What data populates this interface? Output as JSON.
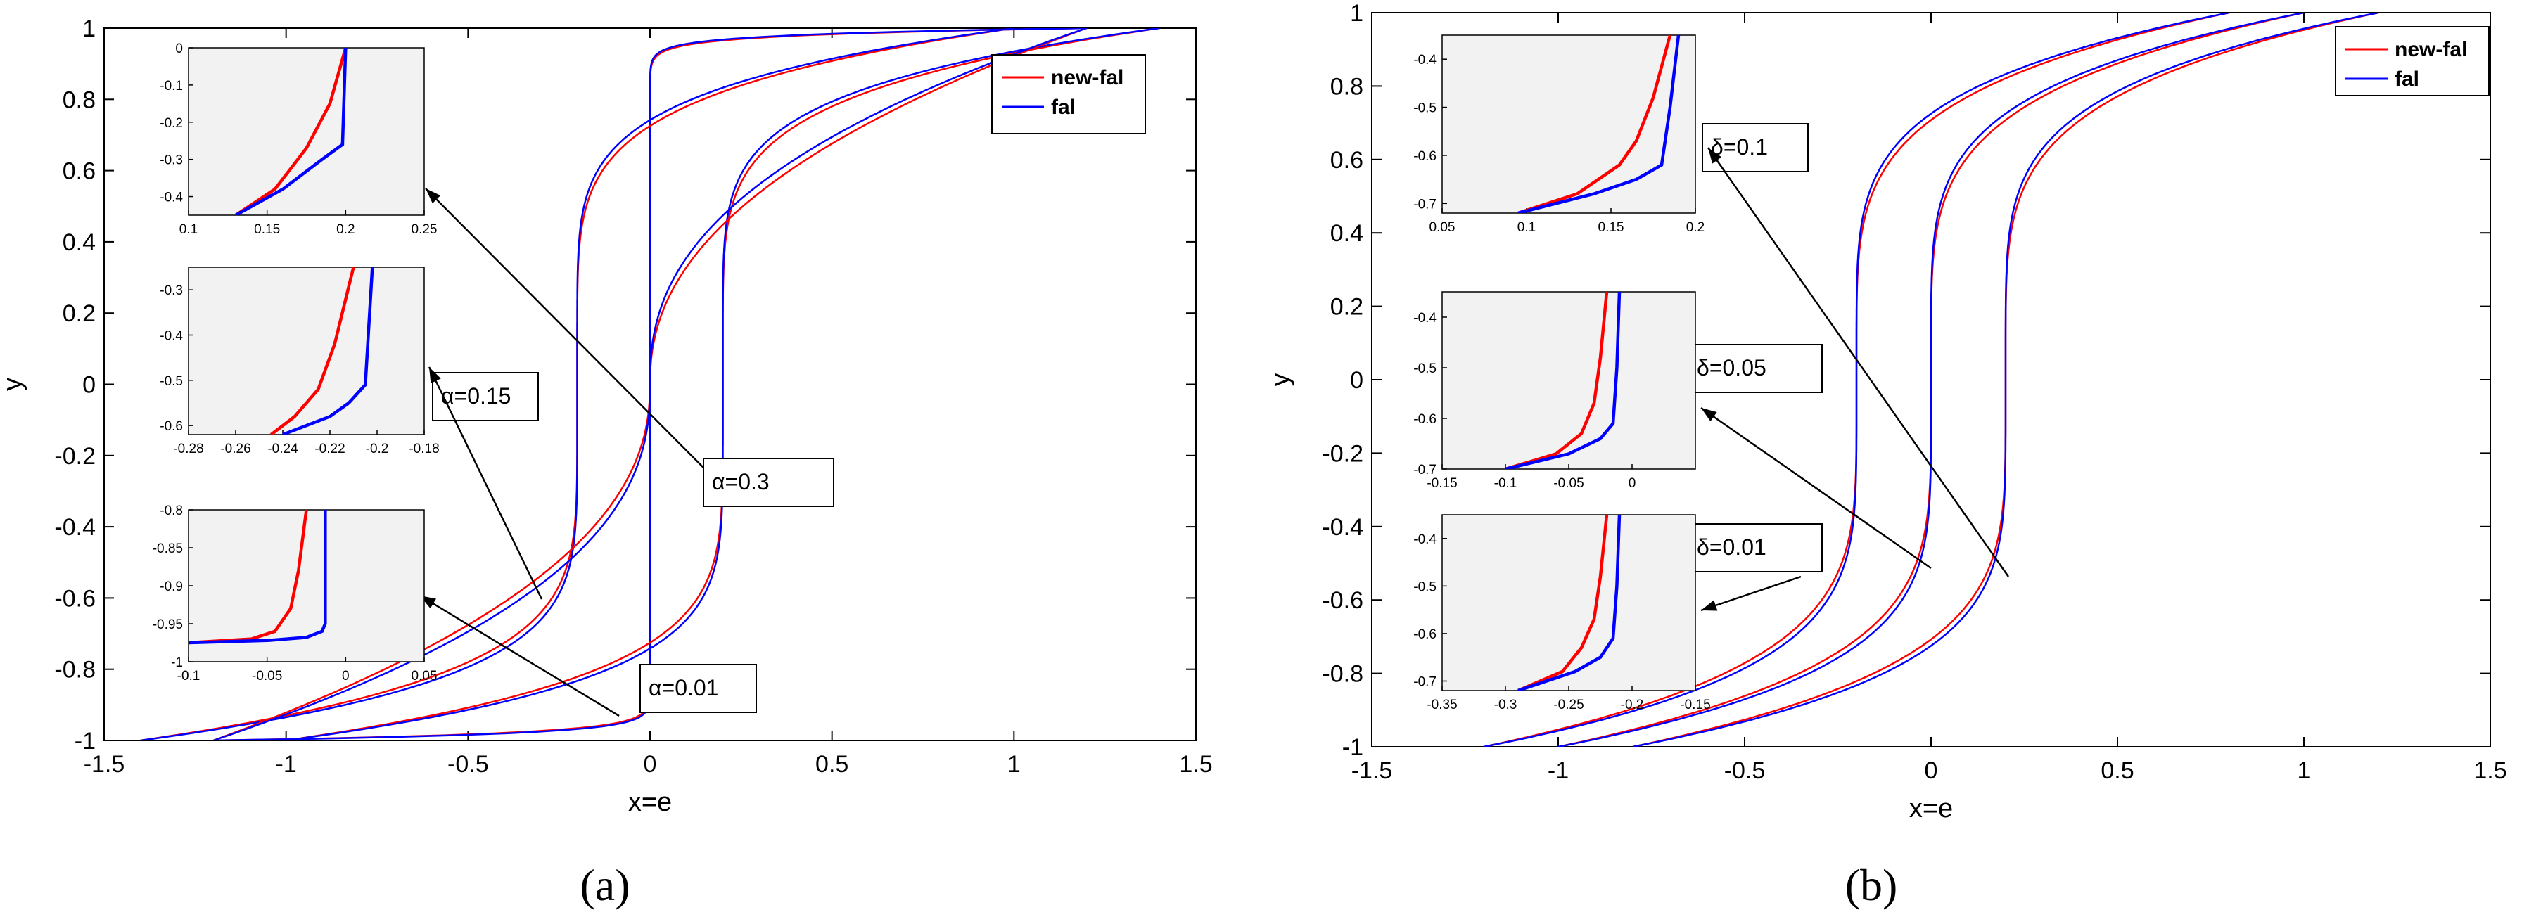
{
  "figure": {
    "caption_a": "(a)",
    "caption_b": "(b)",
    "caption_a_letter": "a",
    "caption_b_letter": "b"
  },
  "colors": {
    "new_fal": "#ff0000",
    "fal": "#0000ff",
    "inset_bg": "#f2f2f2"
  },
  "chart_data": [
    {
      "type": "line",
      "panel": "a",
      "xlabel": "x=e",
      "ylabel": "y",
      "xlim": [
        -1.5,
        1.5
      ],
      "ylim": [
        -1,
        1
      ],
      "xticks": [
        "-1.5",
        "-1",
        "-0.5",
        "0",
        "0.5",
        "1",
        "1.5"
      ],
      "yticks": [
        "-1",
        "-0.8",
        "-0.6",
        "-0.4",
        "-0.2",
        "0",
        "0.2",
        "0.4",
        "0.6",
        "0.8",
        "1"
      ],
      "legend": {
        "position": "top-right",
        "entries": [
          "new-fal",
          "fal"
        ]
      },
      "parameter": "α",
      "curve_form": "x = c + k·sign(y)·|y|^p",
      "series": [
        {
          "label": "α=0.01",
          "c": 0.0,
          "k": 1.2,
          "p": 55
        },
        {
          "label": "α=0.15",
          "c": -0.2,
          "k": 1.2,
          "p": 6
        },
        {
          "label": "α=0.15",
          "c": 0.2,
          "k": 1.2,
          "p": 6
        },
        {
          "label": "α=0.3",
          "c": 0.0,
          "k": 1.2,
          "p": 2.4
        }
      ],
      "annotations": [
        {
          "text": "α=0.3"
        },
        {
          "text": "α=0.15"
        },
        {
          "text": "α=0.01"
        }
      ],
      "insets": [
        {
          "xlim": [
            0.1,
            0.25
          ],
          "ylim": [
            -0.45,
            0
          ],
          "xticks": [
            "0.1",
            "0.15",
            "0.2",
            "0.25"
          ],
          "yticks": [
            "0",
            "-0.1",
            "-0.2",
            "-0.3",
            "-0.4"
          ],
          "new_fal": {
            "x": [
              0.13,
              0.155,
              0.175,
              0.19,
              0.2
            ],
            "y": [
              -0.45,
              -0.38,
              -0.27,
              -0.15,
              0
            ]
          },
          "fal": {
            "x": [
              0.13,
              0.16,
              0.185,
              0.198,
              0.2
            ],
            "y": [
              -0.45,
              -0.38,
              -0.3,
              -0.26,
              0
            ]
          }
        },
        {
          "xlim": [
            -0.28,
            -0.18
          ],
          "ylim": [
            -0.62,
            -0.25
          ],
          "xticks": [
            "-0.28",
            "-0.26",
            "-0.24",
            "-0.22",
            "-0.2",
            "-0.18"
          ],
          "yticks": [
            "-0.3",
            "-0.4",
            "-0.5",
            "-0.6"
          ],
          "new_fal": {
            "x": [
              -0.245,
              -0.235,
              -0.225,
              -0.218,
              -0.21
            ],
            "y": [
              -0.62,
              -0.58,
              -0.52,
              -0.42,
              -0.25
            ]
          },
          "fal": {
            "x": [
              -0.24,
              -0.22,
              -0.212,
              -0.205,
              -0.202
            ],
            "y": [
              -0.62,
              -0.58,
              -0.55,
              -0.51,
              -0.25
            ]
          }
        },
        {
          "xlim": [
            -0.1,
            0.05
          ],
          "ylim": [
            -1,
            -0.8
          ],
          "xticks": [
            "-0.1",
            "-0.05",
            "0",
            "0.05"
          ],
          "yticks": [
            "-0.8",
            "-0.85",
            "-0.9",
            "-0.95",
            "-1"
          ],
          "new_fal": {
            "x": [
              -0.1,
              -0.06,
              -0.045,
              -0.035,
              -0.03,
              -0.025
            ],
            "y": [
              -0.975,
              -0.97,
              -0.96,
              -0.93,
              -0.88,
              -0.8
            ]
          },
          "fal": {
            "x": [
              -0.1,
              -0.05,
              -0.025,
              -0.015,
              -0.013,
              -0.013
            ],
            "y": [
              -0.975,
              -0.972,
              -0.968,
              -0.96,
              -0.95,
              -0.8
            ]
          }
        }
      ]
    },
    {
      "type": "line",
      "panel": "b",
      "xlabel": "x=e",
      "ylabel": "y",
      "xlim": [
        -1.5,
        1.5
      ],
      "ylim": [
        -1,
        1
      ],
      "xticks": [
        "-1.5",
        "-1",
        "-0.5",
        "0",
        "0.5",
        "1",
        "1.5"
      ],
      "yticks": [
        "-1",
        "-0.8",
        "-0.6",
        "-0.4",
        "-0.2",
        "0",
        "0.2",
        "0.4",
        "0.6",
        "0.8",
        "1"
      ],
      "legend": {
        "position": "top-right",
        "entries": [
          "new-fal",
          "fal"
        ]
      },
      "parameter": "δ",
      "curve_form": "x = c + k·sign(y)·|y|^p",
      "series": [
        {
          "label": "δ=0.01",
          "c": -0.2,
          "k": 1.0,
          "p": 5
        },
        {
          "label": "δ=0.05",
          "c": 0.0,
          "k": 1.0,
          "p": 5
        },
        {
          "label": "δ=0.1",
          "c": 0.2,
          "k": 1.0,
          "p": 5
        }
      ],
      "annotations": [
        {
          "text": "δ=0.1"
        },
        {
          "text": "δ=0.05"
        },
        {
          "text": "δ=0.01"
        }
      ],
      "insets": [
        {
          "xlim": [
            0.05,
            0.2
          ],
          "ylim": [
            -0.72,
            -0.35
          ],
          "xticks": [
            "0.05",
            "0.1",
            "0.15",
            "0.2"
          ],
          "yticks": [
            "-0.4",
            "-0.5",
            "-0.6",
            "-0.7"
          ],
          "new_fal": {
            "x": [
              0.095,
              0.13,
              0.155,
              0.165,
              0.175,
              0.185
            ],
            "y": [
              -0.72,
              -0.68,
              -0.62,
              -0.57,
              -0.48,
              -0.35
            ]
          },
          "fal": {
            "x": [
              0.095,
              0.14,
              0.165,
              0.18,
              0.185,
              0.19
            ],
            "y": [
              -0.72,
              -0.68,
              -0.65,
              -0.62,
              -0.5,
              -0.35
            ]
          }
        },
        {
          "xlim": [
            -0.15,
            0.05
          ],
          "ylim": [
            -0.7,
            -0.35
          ],
          "xticks": [
            "-0.15",
            "-0.1",
            "-0.05",
            "0"
          ],
          "yticks": [
            "-0.4",
            "-0.5",
            "-0.6",
            "-0.7"
          ],
          "new_fal": {
            "x": [
              -0.1,
              -0.06,
              -0.04,
              -0.03,
              -0.025,
              -0.02
            ],
            "y": [
              -0.7,
              -0.67,
              -0.63,
              -0.57,
              -0.48,
              -0.35
            ]
          },
          "fal": {
            "x": [
              -0.1,
              -0.05,
              -0.025,
              -0.015,
              -0.012,
              -0.01
            ],
            "y": [
              -0.7,
              -0.67,
              -0.64,
              -0.61,
              -0.5,
              -0.35
            ]
          }
        },
        {
          "xlim": [
            -0.35,
            -0.15
          ],
          "ylim": [
            -0.72,
            -0.35
          ],
          "xticks": [
            "-0.35",
            "-0.3",
            "-0.25",
            "-0.2",
            "-0.15"
          ],
          "yticks": [
            "-0.4",
            "-0.5",
            "-0.6",
            "-0.7"
          ],
          "new_fal": {
            "x": [
              -0.29,
              -0.255,
              -0.24,
              -0.23,
              -0.225,
              -0.22
            ],
            "y": [
              -0.72,
              -0.68,
              -0.63,
              -0.57,
              -0.48,
              -0.35
            ]
          },
          "fal": {
            "x": [
              -0.29,
              -0.245,
              -0.225,
              -0.215,
              -0.212,
              -0.21
            ],
            "y": [
              -0.72,
              -0.68,
              -0.65,
              -0.61,
              -0.5,
              -0.35
            ]
          }
        }
      ]
    }
  ]
}
